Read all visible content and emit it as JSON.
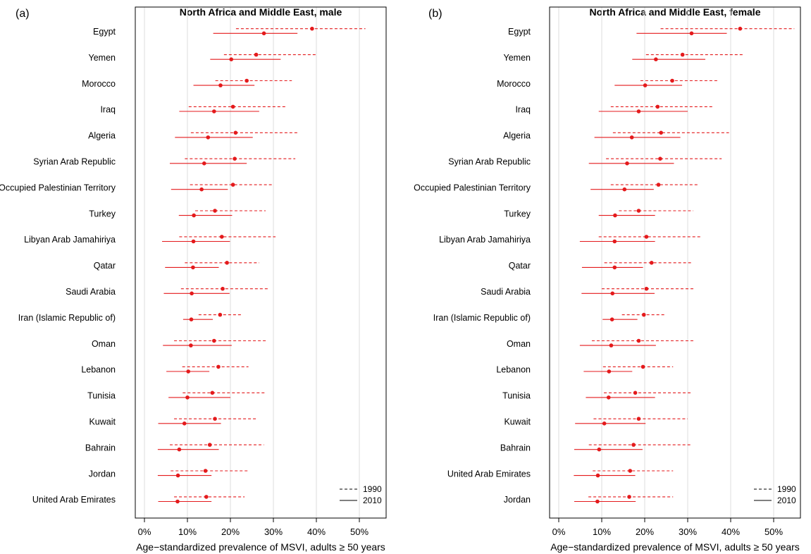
{
  "chart_data": [
    {
      "panel": "(a)",
      "type": "dot-interval",
      "title": "North Africa and Middle East, male",
      "xlabel": "Age−standardized prevalence of MSVI, adults ≥ 50 years",
      "x_ticks": [
        "0%",
        "10%",
        "20%",
        "30%",
        "40%",
        "50%"
      ],
      "xlim": [
        0,
        55
      ],
      "grid": "vertical at 10% steps",
      "legend": {
        "position": "bottom-right",
        "entries": [
          "1990",
          "2010"
        ]
      },
      "categories": [
        "Egypt",
        "Yemen",
        "Morocco",
        "Iraq",
        "Algeria",
        "Syrian Arab Republic",
        "Occupied Palestinian Territory",
        "Turkey",
        "Libyan Arab Jamahiriya",
        "Qatar",
        "Saudi Arabia",
        "Iran (Islamic Republic of)",
        "Oman",
        "Lebanon",
        "Tunisia",
        "Kuwait",
        "Bahrain",
        "Jordan",
        "United Arab Emirates"
      ],
      "series": [
        {
          "name": "1990",
          "point": [
            39.0,
            26.0,
            23.8,
            20.6,
            21.2,
            21.0,
            20.6,
            16.4,
            18.0,
            19.2,
            18.2,
            17.6,
            16.2,
            17.2,
            15.8,
            16.4,
            15.2,
            14.2,
            14.4
          ],
          "low": [
            21.3,
            18.5,
            16.5,
            10.3,
            10.8,
            9.4,
            10.6,
            11.8,
            8.1,
            9.4,
            8.5,
            12.6,
            6.9,
            8.8,
            8.9,
            6.9,
            5.9,
            6.1,
            6.9
          ],
          "high": [
            51.4,
            40.1,
            34.3,
            33.1,
            35.8,
            35.1,
            30.0,
            28.2,
            30.5,
            26.7,
            29.0,
            22.5,
            28.4,
            24.2,
            28.4,
            26.4,
            27.8,
            24.2,
            23.3
          ]
        },
        {
          "name": "2010",
          "point": [
            27.8,
            20.2,
            17.7,
            16.2,
            14.8,
            13.9,
            13.3,
            11.5,
            11.4,
            11.3,
            11.0,
            10.9,
            10.8,
            10.2,
            10.0,
            9.3,
            8.1,
            7.8,
            7.7
          ],
          "low": [
            16.0,
            15.3,
            11.4,
            8.1,
            7.1,
            5.9,
            6.2,
            8.0,
            4.1,
            4.8,
            4.5,
            9.0,
            4.3,
            5.1,
            5.6,
            3.2,
            3.1,
            3.1,
            3.2
          ],
          "high": [
            35.6,
            31.7,
            25.6,
            26.7,
            25.2,
            23.8,
            19.4,
            20.4,
            19.9,
            17.3,
            19.8,
            15.9,
            20.3,
            15.1,
            20.0,
            17.8,
            17.3,
            15.6,
            15.6
          ]
        }
      ]
    },
    {
      "panel": "(b)",
      "type": "dot-interval",
      "title": "North Africa and Middle East, female",
      "xlabel": "Age−standardized prevalence of MSVI, adults ≥ 50 years",
      "x_ticks": [
        "0%",
        "10%",
        "20%",
        "30%",
        "40%",
        "50%"
      ],
      "xlim": [
        0,
        55
      ],
      "grid": "vertical at 10% steps",
      "legend": {
        "position": "bottom-right",
        "entries": [
          "1990",
          "2010"
        ]
      },
      "categories": [
        "Egypt",
        "Yemen",
        "Morocco",
        "Iraq",
        "Algeria",
        "Syrian Arab Republic",
        "Occupied Palestinian Territory",
        "Turkey",
        "Libyan Arab Jamahiriya",
        "Qatar",
        "Saudi Arabia",
        "Iran (Islamic Republic of)",
        "Oman",
        "Lebanon",
        "Tunisia",
        "Kuwait",
        "Bahrain",
        "United Arab Emirates",
        "Jordan"
      ],
      "series": [
        {
          "name": "1990",
          "point": [
            42.2,
            28.8,
            26.4,
            23.0,
            23.8,
            23.6,
            23.2,
            18.6,
            20.4,
            21.6,
            20.4,
            19.8,
            18.6,
            19.6,
            17.8,
            18.6,
            17.4,
            16.6,
            16.4
          ],
          "low": [
            23.7,
            20.3,
            19.0,
            12.1,
            12.6,
            11.0,
            12.1,
            14.0,
            9.3,
            10.6,
            10.0,
            14.7,
            7.7,
            10.3,
            10.5,
            8.1,
            7.0,
            7.9,
            6.9
          ],
          "high": [
            54.8,
            43.0,
            37.2,
            36.0,
            39.6,
            37.9,
            32.5,
            31.3,
            33.1,
            30.9,
            31.8,
            25.0,
            31.4,
            26.6,
            31.1,
            30.0,
            30.6,
            26.6,
            26.6
          ]
        },
        {
          "name": "2010",
          "point": [
            30.9,
            22.6,
            20.1,
            18.6,
            17.0,
            15.9,
            15.3,
            13.1,
            13.0,
            13.0,
            12.5,
            12.4,
            12.2,
            11.7,
            11.6,
            10.6,
            9.4,
            9.1,
            9.0
          ],
          "low": [
            18.1,
            17.1,
            13.0,
            9.3,
            8.3,
            7.0,
            7.4,
            9.3,
            4.9,
            5.4,
            5.3,
            10.2,
            4.9,
            5.8,
            6.3,
            3.8,
            3.6,
            3.5,
            3.6
          ],
          "high": [
            39.1,
            34.1,
            28.7,
            30.0,
            28.3,
            26.8,
            22.1,
            22.4,
            22.4,
            19.6,
            22.3,
            18.3,
            22.6,
            17.1,
            22.4,
            20.2,
            19.5,
            17.8,
            17.9
          ]
        }
      ]
    }
  ],
  "colors": {
    "marker": "#e41a1c",
    "grid": "#dcdcdc",
    "axis": "#000000",
    "legend_line": "#000000"
  }
}
